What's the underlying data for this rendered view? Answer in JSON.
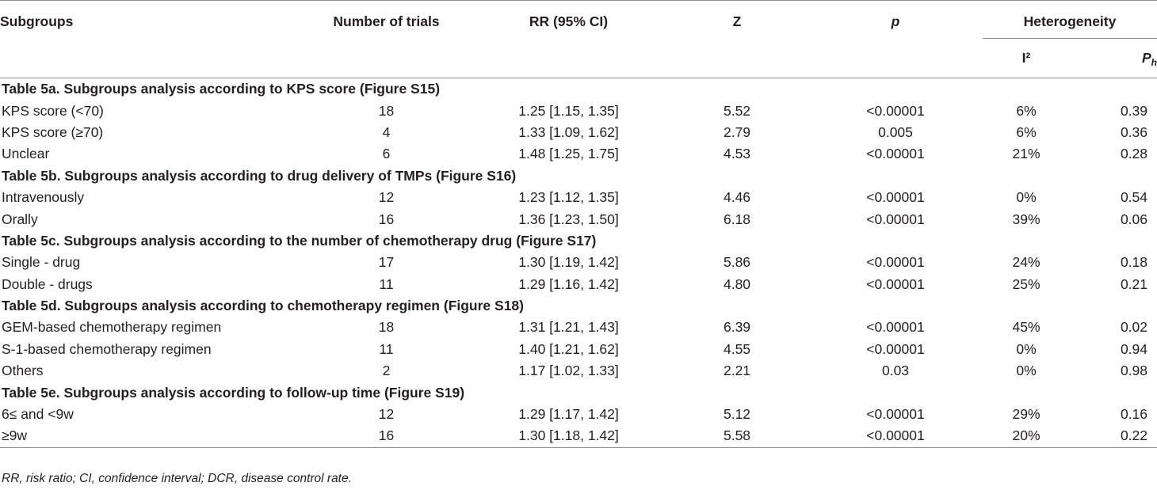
{
  "header": {
    "subgroups": "Subgroups",
    "num_trials": "Number of trials",
    "rr": "RR (95% CI)",
    "z": "Z",
    "p": "p",
    "heterogeneity": "Heterogeneity",
    "i2": "I²",
    "ph_main": "P",
    "ph_sub": "h"
  },
  "sections": [
    {
      "title": "Table 5a. Subgroups analysis according to KPS score (Figure S15)",
      "rows": [
        {
          "subgroup": "KPS score (<70)",
          "trials": "18",
          "rr": "1.25 [1.15, 1.35]",
          "z": "5.52",
          "p": "<0.00001",
          "i2": "6%",
          "ph": "0.39"
        },
        {
          "subgroup": "KPS score (≥70)",
          "trials": "4",
          "rr": "1.33 [1.09, 1.62]",
          "z": "2.79",
          "p": "0.005",
          "i2": "6%",
          "ph": "0.36"
        },
        {
          "subgroup": "Unclear",
          "trials": "6",
          "rr": "1.48 [1.25, 1.75]",
          "z": "4.53",
          "p": "<0.00001",
          "i2": "21%",
          "ph": "0.28"
        }
      ]
    },
    {
      "title": "Table 5b. Subgroups analysis according to drug delivery of TMPs (Figure S16)",
      "rows": [
        {
          "subgroup": "Intravenously",
          "trials": "12",
          "rr": "1.23 [1.12, 1.35]",
          "z": "4.46",
          "p": "<0.00001",
          "i2": "0%",
          "ph": "0.54"
        },
        {
          "subgroup": "Orally",
          "trials": "16",
          "rr": "1.36 [1.23, 1.50]",
          "z": "6.18",
          "p": "<0.00001",
          "i2": "39%",
          "ph": "0.06"
        }
      ]
    },
    {
      "title": "Table 5c. Subgroups analysis according to the number of chemotherapy drug (Figure S17)",
      "rows": [
        {
          "subgroup": "Single - drug",
          "trials": "17",
          "rr": "1.30 [1.19, 1.42]",
          "z": "5.86",
          "p": "<0.00001",
          "i2": "24%",
          "ph": "0.18"
        },
        {
          "subgroup": "Double - drugs",
          "trials": "11",
          "rr": "1.29 [1.16, 1.42]",
          "z": "4.80",
          "p": "<0.00001",
          "i2": "25%",
          "ph": "0.21"
        }
      ]
    },
    {
      "title": "Table 5d. Subgroups analysis according to chemotherapy regimen (Figure S18)",
      "rows": [
        {
          "subgroup": "GEM-based chemotherapy regimen",
          "trials": "18",
          "rr": "1.31 [1.21, 1.43]",
          "z": "6.39",
          "p": "<0.00001",
          "i2": "45%",
          "ph": "0.02"
        },
        {
          "subgroup": "S-1-based chemotherapy regimen",
          "trials": "11",
          "rr": "1.40 [1.21, 1.62]",
          "z": "4.55",
          "p": "<0.00001",
          "i2": "0%",
          "ph": "0.94"
        },
        {
          "subgroup": "Others",
          "trials": "2",
          "rr": "1.17 [1.02, 1.33]",
          "z": "2.21",
          "p": "0.03",
          "i2": "0%",
          "ph": "0.98"
        }
      ]
    },
    {
      "title": "Table 5e. Subgroups analysis according to follow-up time (Figure S19)",
      "rows": [
        {
          "subgroup": "6≤ and <9w",
          "trials": "12",
          "rr": "1.29 [1.17, 1.42]",
          "z": "5.12",
          "p": "<0.00001",
          "i2": "29%",
          "ph": "0.16"
        },
        {
          "subgroup": "≥9w",
          "trials": "16",
          "rr": "1.30 [1.18, 1.42]",
          "z": "5.58",
          "p": "<0.00001",
          "i2": "20%",
          "ph": "0.22"
        }
      ]
    }
  ],
  "footnote": "RR, risk ratio; CI, confidence interval; DCR, disease control rate."
}
